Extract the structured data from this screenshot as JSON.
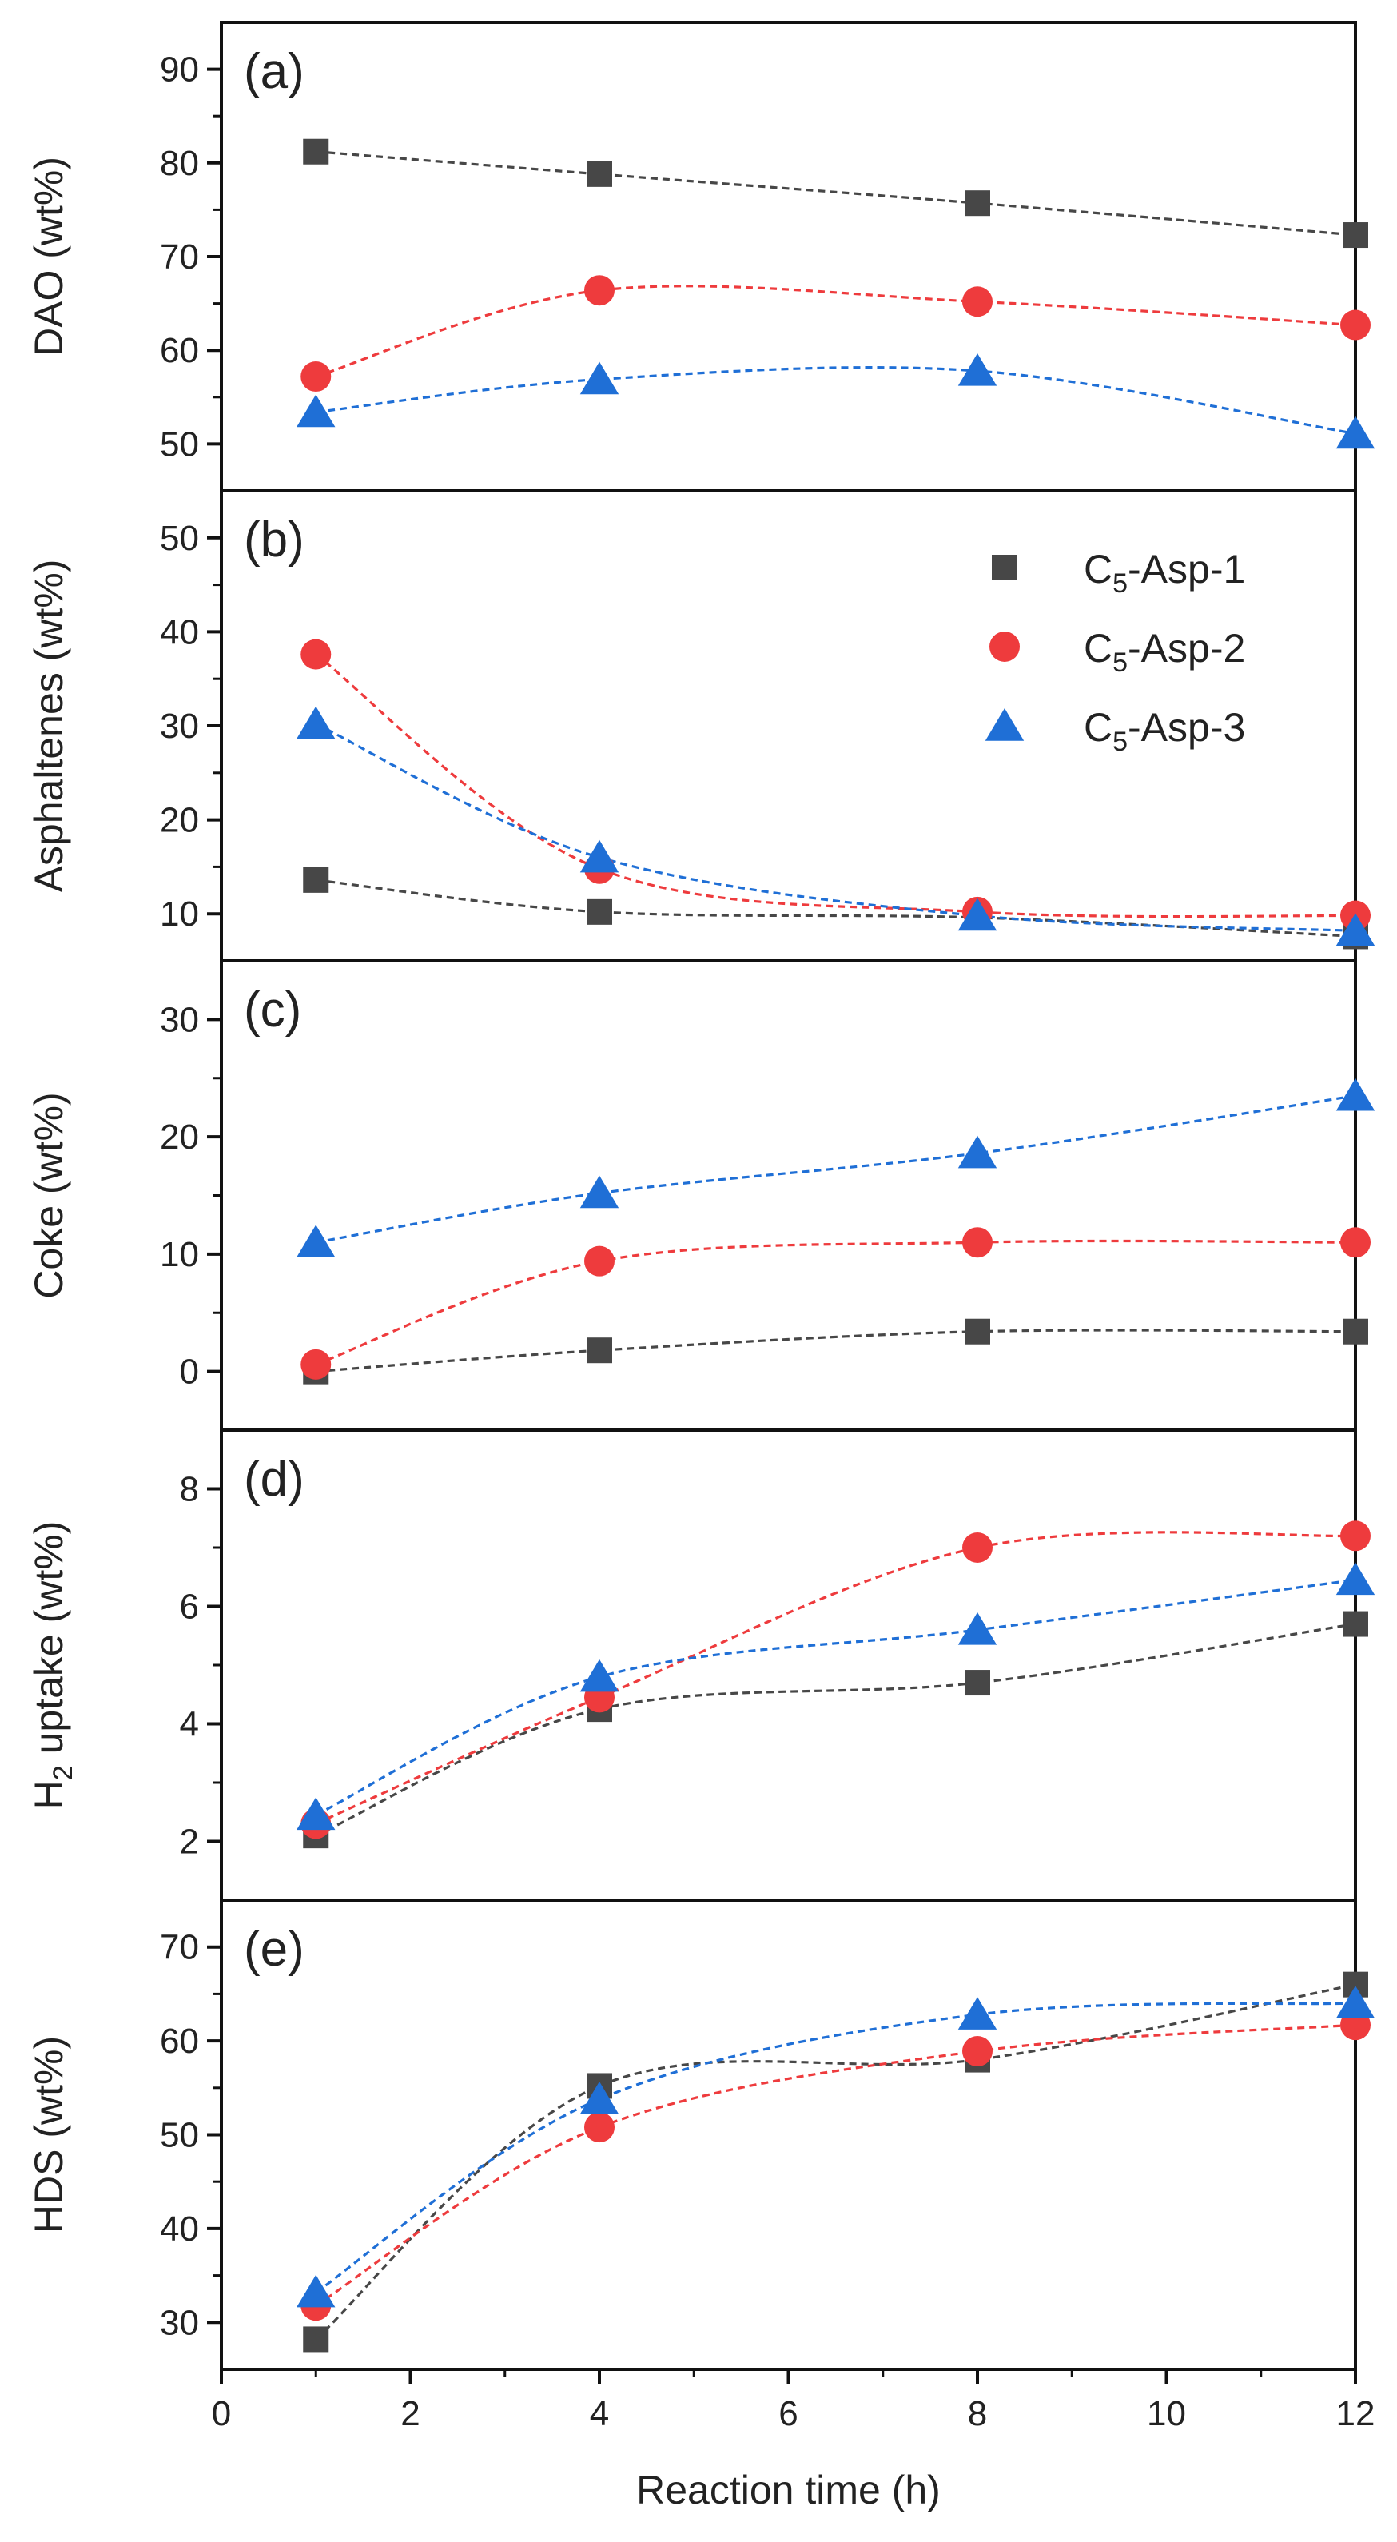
{
  "chart_data": {
    "type": "scatter",
    "x_axis": {
      "label": "Reaction time (h)",
      "range": [
        0,
        12
      ],
      "ticks": [
        0,
        2,
        4,
        6,
        8,
        10,
        12
      ],
      "tick_labels": [
        "0",
        "2",
        "4",
        "6",
        "8",
        "10",
        "12"
      ]
    },
    "legend": {
      "panel": "b",
      "placement": "top-right",
      "entries": [
        {
          "series": "C5-Asp-1",
          "prefix": "C",
          "sub": "5",
          "suffix": "-Asp-1",
          "marker": "square",
          "color": "#474747"
        },
        {
          "series": "C5-Asp-2",
          "prefix": "C",
          "sub": "5",
          "suffix": "-Asp-2",
          "marker": "circle",
          "color": "#ee3b3d"
        },
        {
          "series": "C5-Asp-3",
          "prefix": "C",
          "sub": "5",
          "suffix": "-Asp-3",
          "marker": "triangle",
          "color": "#1f6fd6"
        }
      ]
    },
    "panels": [
      {
        "id": "a",
        "label": "(a)",
        "ylabel": "DAO (wt%)",
        "ylim": [
          45,
          95
        ],
        "yticks": [
          50,
          60,
          70,
          80,
          90
        ],
        "series": [
          {
            "name": "C5-Asp-1",
            "x": [
              1,
              4,
              8,
              12
            ],
            "y": [
              81.2,
              78.8,
              75.7,
              72.3
            ]
          },
          {
            "name": "C5-Asp-2",
            "x": [
              1,
              4,
              8,
              12
            ],
            "y": [
              57.2,
              66.4,
              65.2,
              62.7
            ]
          },
          {
            "name": "C5-Asp-3",
            "x": [
              1,
              4,
              8,
              12
            ],
            "y": [
              53.4,
              56.9,
              57.8,
              51.1
            ]
          }
        ]
      },
      {
        "id": "b",
        "label": "(b)",
        "ylabel": "Asphaltenes (wt%)",
        "ylim": [
          5,
          55
        ],
        "yticks": [
          10,
          20,
          30,
          40,
          50
        ],
        "series": [
          {
            "name": "C5-Asp-1",
            "x": [
              1,
              4,
              8,
              12
            ],
            "y": [
              13.6,
              10.2,
              9.6,
              7.6
            ]
          },
          {
            "name": "C5-Asp-2",
            "x": [
              1,
              4,
              8,
              12
            ],
            "y": [
              37.6,
              14.8,
              10.2,
              9.8
            ]
          },
          {
            "name": "C5-Asp-3",
            "x": [
              1,
              4,
              8,
              12
            ],
            "y": [
              30.2,
              16.0,
              9.8,
              8.2
            ]
          }
        ]
      },
      {
        "id": "c",
        "label": "(c)",
        "ylabel": "Coke (wt%)",
        "ylim": [
          -5,
          35
        ],
        "yticks": [
          0,
          10,
          20,
          30
        ],
        "series": [
          {
            "name": "C5-Asp-1",
            "x": [
              1,
              4,
              8,
              12
            ],
            "y": [
              0.0,
              1.8,
              3.4,
              3.4
            ]
          },
          {
            "name": "C5-Asp-2",
            "x": [
              1,
              4,
              8,
              12
            ],
            "y": [
              0.6,
              9.4,
              11.0,
              11.0
            ]
          },
          {
            "name": "C5-Asp-3",
            "x": [
              1,
              4,
              8,
              12
            ],
            "y": [
              11.0,
              15.2,
              18.6,
              23.5
            ]
          }
        ]
      },
      {
        "id": "d",
        "label": "(d)",
        "ylabel_prefix": "H",
        "ylabel_sub": "2",
        "ylabel_suffix": " uptake (wt%)",
        "ylim": [
          1,
          9
        ],
        "yticks": [
          2,
          4,
          6,
          8
        ],
        "series": [
          {
            "name": "C5-Asp-1",
            "x": [
              1,
              4,
              8,
              12
            ],
            "y": [
              2.1,
              4.25,
              4.7,
              5.7
            ]
          },
          {
            "name": "C5-Asp-2",
            "x": [
              1,
              4,
              8,
              12
            ],
            "y": [
              2.3,
              4.45,
              7.0,
              7.2
            ]
          },
          {
            "name": "C5-Asp-3",
            "x": [
              1,
              4,
              8,
              12
            ],
            "y": [
              2.45,
              4.8,
              5.6,
              6.45
            ]
          }
        ]
      },
      {
        "id": "e",
        "label": "(e)",
        "ylabel": "HDS (wt%)",
        "ylim": [
          25,
          75
        ],
        "yticks": [
          30,
          40,
          50,
          60,
          70
        ],
        "series": [
          {
            "name": "C5-Asp-1",
            "x": [
              1,
              4,
              8,
              12
            ],
            "y": [
              28.2,
              55.2,
              58.0,
              66.0
            ]
          },
          {
            "name": "C5-Asp-2",
            "x": [
              1,
              4,
              8,
              12
            ],
            "y": [
              31.8,
              50.8,
              58.9,
              61.7
            ]
          },
          {
            "name": "C5-Asp-3",
            "x": [
              1,
              4,
              8,
              12
            ],
            "y": [
              33.2,
              53.8,
              62.8,
              64.0
            ]
          }
        ]
      }
    ]
  }
}
